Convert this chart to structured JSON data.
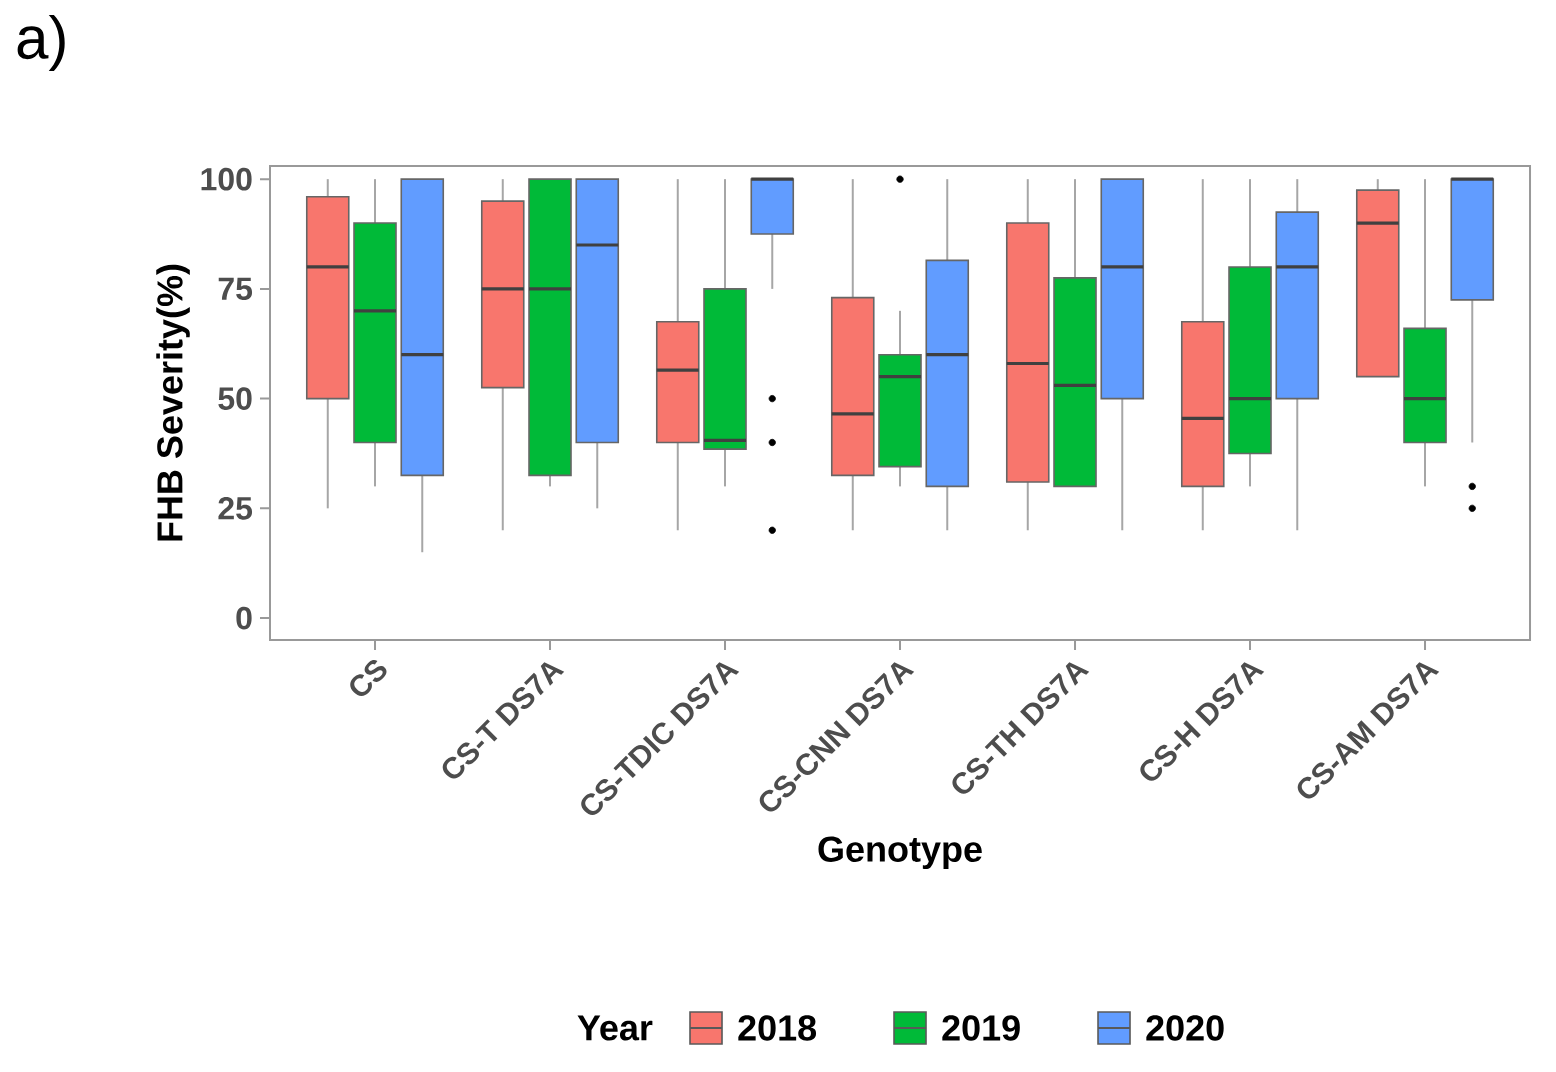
{
  "chart_data": {
    "type": "box",
    "categories": [
      "CS",
      "CS-T DS7A",
      "CS-TDIC DS7A",
      "CS-CNN DS7A",
      "CS-TH DS7A",
      "CS-H DS7A",
      "CS-AM DS7A"
    ],
    "xlabel": "Genotype",
    "ylabel": "FHB Severity(%)",
    "legend_title": "Year",
    "legend": "bottom",
    "ylim": [
      -5,
      103
    ],
    "yticks": [
      0,
      25,
      50,
      75,
      100
    ],
    "annotations": [
      "a)"
    ],
    "series": [
      {
        "name": "2018",
        "color": "#f8766d",
        "boxes": [
          {
            "low": 25,
            "q1": 50,
            "median": 80,
            "q3": 96,
            "high": 100
          },
          {
            "low": 20,
            "q1": 52.5,
            "median": 75,
            "q3": 95,
            "high": 100
          },
          {
            "low": 20,
            "q1": 40,
            "median": 56.5,
            "q3": 67.5,
            "high": 100
          },
          {
            "low": 20,
            "q1": 32.5,
            "median": 46.5,
            "q3": 73,
            "high": 100
          },
          {
            "low": 20,
            "q1": 31,
            "median": 58,
            "q3": 90,
            "high": 100
          },
          {
            "low": 20,
            "q1": 30,
            "median": 45.5,
            "q3": 67.5,
            "high": 100
          },
          {
            "low": 55,
            "q1": 55,
            "median": 90,
            "q3": 97.5,
            "high": 100
          }
        ]
      },
      {
        "name": "2019",
        "color": "#00ba38",
        "boxes": [
          {
            "low": 30,
            "q1": 40,
            "median": 70,
            "q3": 90,
            "high": 100
          },
          {
            "low": 30,
            "q1": 32.5,
            "median": 75,
            "q3": 100,
            "high": 100
          },
          {
            "low": 30,
            "q1": 38.5,
            "median": 40.5,
            "q3": 75,
            "high": 100
          },
          {
            "low": 30,
            "q1": 34.5,
            "median": 55,
            "q3": 60,
            "high": 70,
            "outliers": [
              100
            ]
          },
          {
            "low": 30,
            "q1": 30,
            "median": 53,
            "q3": 77.5,
            "high": 100
          },
          {
            "low": 30,
            "q1": 37.5,
            "median": 50,
            "q3": 80,
            "high": 100
          },
          {
            "low": 30,
            "q1": 40,
            "median": 50,
            "q3": 66,
            "high": 100
          }
        ]
      },
      {
        "name": "2020",
        "color": "#619cff",
        "boxes": [
          {
            "low": 15,
            "q1": 32.5,
            "median": 60,
            "q3": 100,
            "high": 100
          },
          {
            "low": 25,
            "q1": 40,
            "median": 85,
            "q3": 100,
            "high": 100
          },
          {
            "low": 75,
            "q1": 87.5,
            "median": 100,
            "q3": 100,
            "high": 100,
            "outliers": [
              50,
              40,
              20
            ]
          },
          {
            "low": 20,
            "q1": 30,
            "median": 60,
            "q3": 81.5,
            "high": 100
          },
          {
            "low": 20,
            "q1": 50,
            "median": 80,
            "q3": 100,
            "high": 100
          },
          {
            "low": 20,
            "q1": 50,
            "median": 80,
            "q3": 92.5,
            "high": 100
          },
          {
            "low": 40,
            "q1": 72.5,
            "median": 100,
            "q3": 100,
            "high": 100,
            "outliers": [
              30,
              25
            ]
          }
        ]
      }
    ]
  }
}
